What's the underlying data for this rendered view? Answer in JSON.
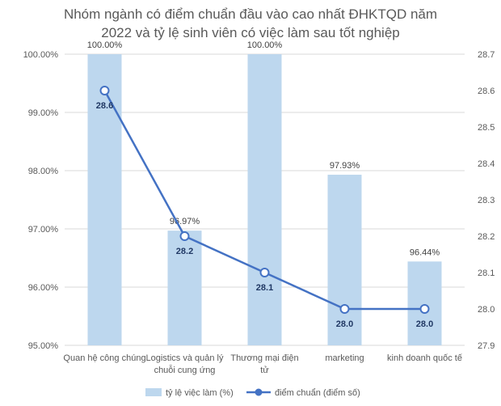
{
  "chart_data": {
    "type": "bar",
    "title_lines": [
      "Nhóm ngành có điểm chuẩn đầu vào cao nhất ĐHKTQD năm",
      "2022 và tỷ lệ sinh viên có việc làm sau tốt nghiệp"
    ],
    "categories": [
      [
        "Quan hệ công chúng"
      ],
      [
        "Logistics và quản lý",
        "chuỗi cung ứng"
      ],
      [
        "Thương mại điện",
        "tử"
      ],
      [
        "marketing"
      ],
      [
        "kinh doanh quốc tế"
      ]
    ],
    "series": [
      {
        "name": "tỷ lệ việc làm (%)",
        "kind": "bar",
        "axis": "left",
        "color": "#bdd7ee",
        "values": [
          100.0,
          96.97,
          100.0,
          97.93,
          96.44
        ],
        "labels": [
          "100.00%",
          "96.97%",
          "100.00%",
          "97.93%",
          "96.44%"
        ]
      },
      {
        "name": "điểm chuẩn (điểm số)",
        "kind": "line",
        "axis": "right",
        "color": "#4472c4",
        "values": [
          28.6,
          28.2,
          28.1,
          28.0,
          28.0
        ],
        "labels": [
          "28.6",
          "28.2",
          "28.1",
          "28.0",
          "28.0"
        ]
      }
    ],
    "y_left": {
      "min": 95,
      "max": 100,
      "ticks": [
        95,
        96,
        97,
        98,
        99,
        100
      ],
      "tick_labels": [
        "95.00%",
        "96.00%",
        "97.00%",
        "98.00%",
        "99.00%",
        "100.00%"
      ]
    },
    "y_right": {
      "min": 27.9,
      "max": 28.7,
      "ticks": [
        27.9,
        28.0,
        28.1,
        28.2,
        28.3,
        28.4,
        28.5,
        28.6,
        28.7
      ],
      "tick_labels": [
        "27.9",
        "28.0",
        "28.1",
        "28.2",
        "28.3",
        "28.4",
        "28.5",
        "28.6",
        "28.7"
      ]
    },
    "grid": true,
    "legend_position": "bottom"
  },
  "colors": {
    "grid": "#d9d9d9",
    "axis_text": "#595959",
    "label_text": "#404040",
    "line_label_text": "#203864"
  }
}
